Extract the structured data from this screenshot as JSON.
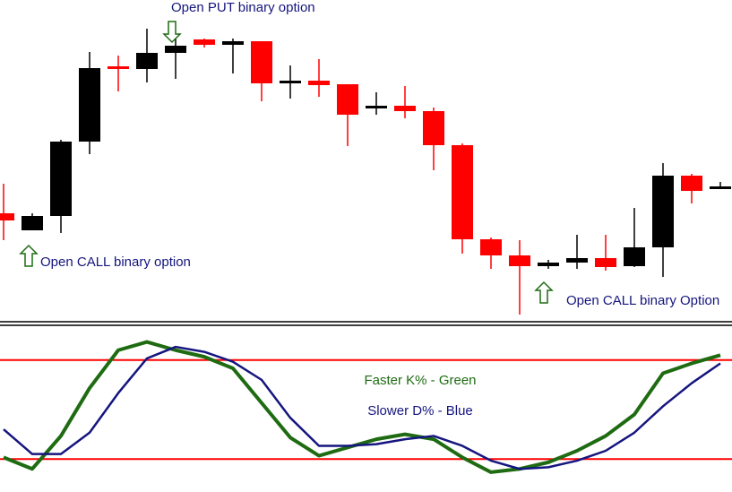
{
  "chart_data": [
    {
      "type": "candlestick",
      "open": [
        117,
        98,
        114,
        197,
        281,
        278,
        296,
        311,
        305,
        309,
        262,
        265,
        261,
        234,
        237,
        231,
        193,
        88,
        70,
        58,
        62,
        67,
        58,
        79,
        159,
        147
      ],
      "high": [
        150,
        117,
        199,
        297,
        293,
        323,
        317,
        312,
        312,
        309,
        282,
        289,
        261,
        252,
        259,
        235,
        195,
        90,
        87,
        65,
        93,
        93,
        123,
        173,
        161,
        152
      ],
      "low": [
        87,
        98,
        95,
        183,
        253,
        263,
        267,
        302,
        273,
        242,
        245,
        247,
        192,
        227,
        223,
        165,
        72,
        55,
        4,
        55,
        55,
        53,
        57,
        46,
        128,
        144
      ],
      "close": [
        109,
        114,
        197,
        279,
        278,
        296,
        304,
        305,
        309,
        262,
        265,
        260,
        227,
        237,
        231,
        193,
        88,
        70,
        58,
        62,
        67,
        57,
        79,
        159,
        142,
        147
      ],
      "up_color": "#000000",
      "down_color": "#ff0000",
      "ylim": [
        0,
        355
      ],
      "annotations": [
        "Open PUT binary option",
        "Open CALL binary option",
        "Open CALL binary Option"
      ]
    },
    {
      "type": "line",
      "series": [
        {
          "name": "Faster K% - Green",
          "color": "#1e6b12",
          "values": [
            21,
            14,
            34,
            63,
            86,
            91,
            86,
            82,
            75,
            54,
            33,
            22,
            27,
            32,
            35,
            32,
            21,
            12,
            14,
            18,
            25,
            34,
            47,
            72,
            78,
            83
          ]
        },
        {
          "name": "Slower D% - Blue",
          "color": "#15157f",
          "values": [
            38,
            23,
            23,
            36,
            60,
            81,
            88,
            85,
            79,
            68,
            45,
            28,
            28,
            29,
            32,
            34,
            28,
            19,
            14,
            15,
            19,
            25,
            36,
            52,
            66,
            78
          ]
        }
      ],
      "levels": [
        80,
        20
      ],
      "level_color": "#ff0000",
      "ylim": [
        0,
        100
      ]
    }
  ]
}
